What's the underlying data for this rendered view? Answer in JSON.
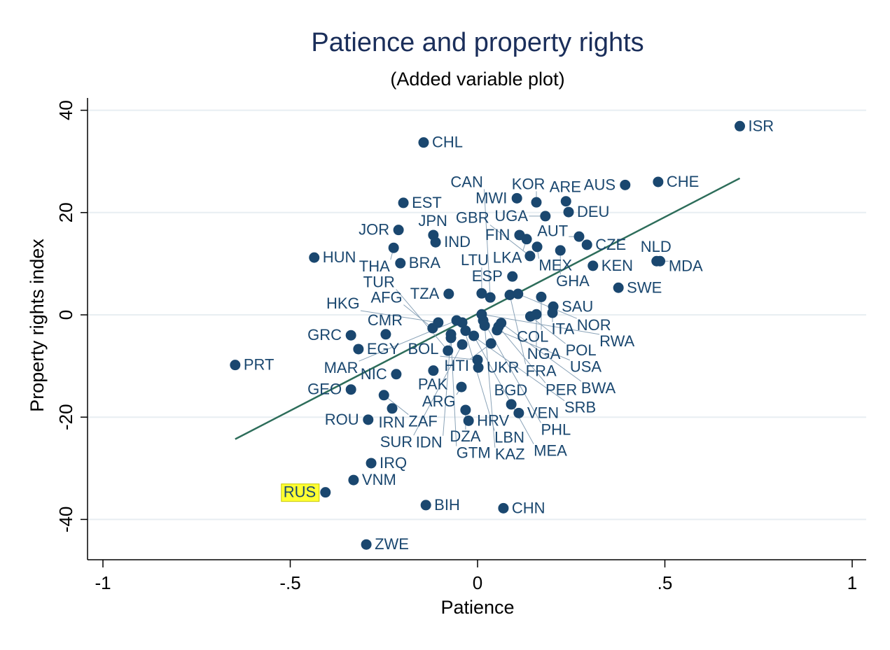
{
  "chart_data": {
    "type": "scatter",
    "title": "Patience and property rights",
    "subtitle": "(Added variable plot)",
    "xlabel": "Patience",
    "ylabel": "Property rights index",
    "xlim": [
      -1.06,
      1.04
    ],
    "ylim": [
      -47.5,
      43
    ],
    "xticks": [
      -1,
      -0.5,
      0,
      0.5,
      1
    ],
    "xtick_labels": [
      "-1",
      "-.5",
      "0",
      ".5",
      "1"
    ],
    "yticks": [
      40,
      20,
      0,
      -20,
      -40
    ],
    "ytick_labels": [
      "40",
      "20",
      "0",
      "-20",
      "-40"
    ],
    "grid": true,
    "colors": {
      "marker": "#1a476f",
      "fit_line": "#2d6d5a",
      "highlight": "#ffff33",
      "grid": "#e8eef2"
    },
    "highlighted": "RUS",
    "fit_line": {
      "x": [
        -0.647,
        0.7
      ],
      "y": [
        -24.3,
        26.7
      ]
    },
    "points": [
      {
        "label": "ISR",
        "x": 0.7,
        "y": 36.9
      },
      {
        "label": "CHL",
        "x": -0.144,
        "y": 33.7
      },
      {
        "label": "EST",
        "x": -0.198,
        "y": 21.9
      },
      {
        "label": "MWI",
        "x": 0.105,
        "y": 22.8
      },
      {
        "label": "KOR",
        "x": 0.157,
        "y": 22.0
      },
      {
        "label": "ARE",
        "x": 0.236,
        "y": 22.2
      },
      {
        "label": "DEU",
        "x": 0.243,
        "y": 20.1
      },
      {
        "label": "UGA",
        "x": 0.181,
        "y": 19.3
      },
      {
        "label": "AUS",
        "x": 0.394,
        "y": 25.4
      },
      {
        "label": "CHE",
        "x": 0.482,
        "y": 26.0
      },
      {
        "label": "FIN",
        "x": 0.112,
        "y": 15.6
      },
      {
        "label": "LKA",
        "x": 0.131,
        "y": 14.8
      },
      {
        "label": "AUT",
        "x": 0.271,
        "y": 15.3
      },
      {
        "label": "CZE",
        "x": 0.292,
        "y": 13.7
      },
      {
        "label": "MEX",
        "x": 0.159,
        "y": 13.3
      },
      {
        "label": "GHA",
        "x": 0.221,
        "y": 12.6
      },
      {
        "label": "GBR",
        "x": 0.14,
        "y": 11.5
      },
      {
        "label": "KEN",
        "x": 0.308,
        "y": 9.6
      },
      {
        "label": "NLD",
        "x": 0.478,
        "y": 10.5
      },
      {
        "label": "MDA",
        "x": 0.487,
        "y": 10.5
      },
      {
        "label": "ESP",
        "x": 0.093,
        "y": 7.5
      },
      {
        "label": "SWE",
        "x": 0.376,
        "y": 5.3
      },
      {
        "label": "HUN",
        "x": -0.436,
        "y": 11.2
      },
      {
        "label": "JOR",
        "x": -0.211,
        "y": 16.6
      },
      {
        "label": "JPN",
        "x": -0.118,
        "y": 15.6
      },
      {
        "label": "IND",
        "x": -0.112,
        "y": 14.2
      },
      {
        "label": "THA",
        "x": -0.224,
        "y": 13.1
      },
      {
        "label": "BRA",
        "x": -0.206,
        "y": 10.1
      },
      {
        "label": "TZA",
        "x": -0.077,
        "y": 4.1
      },
      {
        "label": "LTU",
        "x": 0.011,
        "y": 4.2
      },
      {
        "label": "CAN",
        "x": 0.034,
        "y": 3.4
      },
      {
        "label": "FRA",
        "x": 0.086,
        "y": 3.9
      },
      {
        "label": "NOR",
        "x": 0.108,
        "y": 4.1
      },
      {
        "label": "COL",
        "x": 0.17,
        "y": 3.5
      },
      {
        "label": "SAU",
        "x": 0.202,
        "y": 1.6
      },
      {
        "label": "ITA",
        "x": 0.2,
        "y": 0.4
      },
      {
        "label": "NGA",
        "x": 0.157,
        "y": 0.1
      },
      {
        "label": "POL",
        "x": 0.141,
        "y": -0.3
      },
      {
        "label": "RWA",
        "x": 0.011,
        "y": 0.1
      },
      {
        "label": "PER",
        "x": 0.056,
        "y": -2.3
      },
      {
        "label": "HKG",
        "x": -0.105,
        "y": -1.5
      },
      {
        "label": "MAR",
        "x": -0.056,
        "y": -1.1
      },
      {
        "label": "LBN",
        "x": -0.041,
        "y": -1.5
      },
      {
        "label": "PHL",
        "x": 0.015,
        "y": -1.1
      },
      {
        "label": "BWA",
        "x": 0.063,
        "y": -1.6
      },
      {
        "label": "IDN",
        "x": -0.071,
        "y": -3.8
      },
      {
        "label": "SRB",
        "x": -0.032,
        "y": -3.1
      },
      {
        "label": "KAZ",
        "x": 0.019,
        "y": -2.1
      },
      {
        "label": "USA",
        "x": 0.052,
        "y": -3.0
      },
      {
        "label": "AFG",
        "x": -0.12,
        "y": -2.6
      },
      {
        "label": "MEA",
        "x": -0.01,
        "y": -4.1
      },
      {
        "label": "GTM",
        "x": -0.071,
        "y": -4.5
      },
      {
        "label": "SUR",
        "x": -0.041,
        "y": -5.8
      },
      {
        "label": "HTI",
        "x": 0.036,
        "y": -5.6
      },
      {
        "label": "TUR",
        "x": -0.079,
        "y": -7.0
      },
      {
        "label": "BOL",
        "x": 0.0,
        "y": -8.8
      },
      {
        "label": "UKR",
        "x": 0.002,
        "y": -10.3
      },
      {
        "label": "PAK",
        "x": -0.118,
        "y": -10.9
      },
      {
        "label": "NIC",
        "x": -0.217,
        "y": -11.6
      },
      {
        "label": "PRT",
        "x": -0.647,
        "y": -9.8
      },
      {
        "label": "GRC",
        "x": -0.338,
        "y": -4.0
      },
      {
        "label": "CMR",
        "x": -0.245,
        "y": -3.8
      },
      {
        "label": "EGY",
        "x": -0.318,
        "y": -6.7
      },
      {
        "label": "GEO",
        "x": -0.338,
        "y": -14.6
      },
      {
        "label": "ZAF",
        "x": -0.25,
        "y": -15.7
      },
      {
        "label": "ARG",
        "x": -0.043,
        "y": -14.1
      },
      {
        "label": "IRN",
        "x": -0.228,
        "y": -18.3
      },
      {
        "label": "DZA",
        "x": -0.032,
        "y": -18.6
      },
      {
        "label": "BGD",
        "x": 0.09,
        "y": -17.5
      },
      {
        "label": "VEN",
        "x": 0.11,
        "y": -19.2
      },
      {
        "label": "ROU",
        "x": -0.292,
        "y": -20.5
      },
      {
        "label": "HRV",
        "x": -0.024,
        "y": -20.7
      },
      {
        "label": "IRQ",
        "x": -0.284,
        "y": -29.0
      },
      {
        "label": "VNM",
        "x": -0.331,
        "y": -32.3
      },
      {
        "label": "RUS",
        "x": -0.406,
        "y": -34.7
      },
      {
        "label": "BIH",
        "x": -0.138,
        "y": -37.2
      },
      {
        "label": "CHN",
        "x": 0.069,
        "y": -37.8
      },
      {
        "label": "ZWE",
        "x": -0.297,
        "y": -44.9
      }
    ]
  }
}
